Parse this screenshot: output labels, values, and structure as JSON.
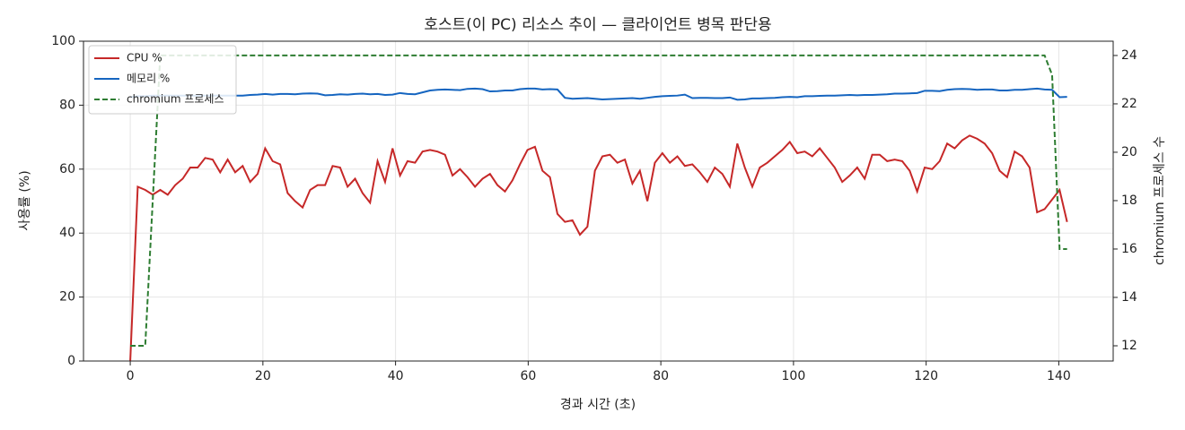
{
  "chart_data": {
    "type": "line",
    "title": "호스트(이 PC) 리소스 추이 — 클라이언트 병목 판단용",
    "x_label": "경과 시간 (초)",
    "y_label": "사용률 (%)",
    "y2_label": "chromium 프로세스 수",
    "x": [
      0,
      1.13,
      2.26,
      3.39,
      4.52,
      5.65,
      6.78,
      7.91,
      9.04,
      10.17,
      11.3,
      12.43,
      13.56,
      14.69,
      15.82,
      16.95,
      18.08,
      19.21,
      20.34,
      21.47,
      22.6,
      23.73,
      24.86,
      25.99,
      27.12,
      28.25,
      29.38,
      30.51,
      31.64,
      32.77,
      33.9,
      35.03,
      36.16,
      37.29,
      38.42,
      39.55,
      40.68,
      41.81,
      42.94,
      44.07,
      45.2,
      46.33,
      47.46,
      48.59,
      49.72,
      50.85,
      51.98,
      53.11,
      54.24,
      55.37,
      56.5,
      57.63,
      58.76,
      59.89,
      61.02,
      62.15,
      63.28,
      64.41,
      65.54,
      66.67,
      67.8,
      68.93,
      70.06,
      71.19,
      72.32,
      73.45,
      74.58,
      75.71,
      76.84,
      77.97,
      79.1,
      80.23,
      81.36,
      82.49,
      83.62,
      84.75,
      85.88,
      87.01,
      88.14,
      89.27,
      90.4,
      91.53,
      92.66,
      93.79,
      94.92,
      96.05,
      97.18,
      98.31,
      99.44,
      100.57,
      101.7,
      102.83,
      103.96,
      105.09,
      106.22,
      107.35,
      108.48,
      109.61,
      110.74,
      111.87,
      113,
      114.13,
      115.26,
      116.39,
      117.52,
      118.65,
      119.78,
      120.91,
      122.04,
      123.17,
      124.3,
      125.43,
      126.56,
      127.69,
      128.82,
      129.95,
      131.08,
      132.21,
      133.34,
      134.47,
      135.6,
      136.73,
      137.86,
      138.99,
      140.12,
      141.25
    ],
    "series": [
      {
        "name": "CPU %",
        "color": "#c62828",
        "dash": false,
        "values": [
          0,
          54.5,
          53.5,
          52,
          53.5,
          52,
          55,
          57,
          60.5,
          60.5,
          63.5,
          63,
          59,
          63,
          59,
          61,
          56,
          58.5,
          66.5,
          62.5,
          61.5,
          52.5,
          50,
          48,
          53.5,
          55,
          55,
          61,
          60.5,
          54.5,
          57,
          52.5,
          49.5,
          62.5,
          56,
          66.5,
          58,
          62.5,
          62,
          65.5,
          66,
          65.5,
          64.5,
          58,
          60,
          57.5,
          54.5,
          57,
          58.5,
          55,
          53,
          56.5,
          61.5,
          66,
          67,
          59.5,
          57.5,
          46,
          43.5,
          44,
          39.5,
          42,
          59.5,
          64,
          64.5,
          62,
          63,
          55.5,
          59.5,
          50,
          62,
          65,
          62,
          64,
          61,
          61.5,
          59,
          56,
          60.5,
          58.5,
          54.5,
          68,
          60.5,
          54.5,
          60.5,
          62,
          64,
          66,
          68.5,
          65,
          65.5,
          64,
          66.5,
          63.5,
          60.5,
          56,
          58,
          60.5,
          57,
          64.5,
          64.5,
          62.5,
          63,
          62.5,
          59.5,
          53,
          60.5,
          60,
          62.5,
          68,
          66.5,
          69,
          70.5,
          69.5,
          68,
          65,
          59.5,
          57.5,
          65.5,
          64,
          60.5,
          46.5,
          47.5,
          50.5,
          53.5,
          43.5
        ]
      },
      {
        "name": "메모리 %",
        "color": "#1565c0",
        "dash": false,
        "values": [
          82.5,
          82.8,
          82.8,
          83,
          83,
          83,
          83,
          83,
          83,
          83,
          83,
          83,
          83,
          83,
          83,
          83,
          83.2,
          83.3,
          83.5,
          83.3,
          83.5,
          83.5,
          83.4,
          83.6,
          83.7,
          83.6,
          83.1,
          83.2,
          83.4,
          83.3,
          83.5,
          83.6,
          83.4,
          83.5,
          83.2,
          83.3,
          83.8,
          83.5,
          83.4,
          84,
          84.6,
          84.8,
          84.9,
          84.8,
          84.7,
          85.1,
          85.2,
          85,
          84.3,
          84.4,
          84.6,
          84.6,
          85,
          85.2,
          85.2,
          84.9,
          85,
          84.9,
          82.3,
          82,
          82.1,
          82.2,
          82,
          81.8,
          81.9,
          82,
          82.1,
          82.2,
          82,
          82.3,
          82.6,
          82.8,
          82.9,
          83,
          83.3,
          82.2,
          82.3,
          82.3,
          82.2,
          82.2,
          82.4,
          81.7,
          81.8,
          82.1,
          82.1,
          82.2,
          82.3,
          82.5,
          82.6,
          82.5,
          82.8,
          82.8,
          82.9,
          83,
          83,
          83.1,
          83.2,
          83.1,
          83.2,
          83.2,
          83.3,
          83.4,
          83.6,
          83.6,
          83.7,
          83.8,
          84.5,
          84.5,
          84.4,
          84.8,
          85,
          85.1,
          85,
          84.8,
          84.9,
          84.9,
          84.6,
          84.6,
          84.8,
          84.8,
          85,
          85.2,
          84.9,
          84.8,
          82.5,
          82.6
        ]
      },
      {
        "name": "chromium 프로세스",
        "color": "#2e7d32",
        "dash": true,
        "axis": "y2",
        "values": [
          12,
          12,
          12,
          18,
          24,
          24,
          24,
          24,
          24,
          24,
          24,
          24,
          24,
          24,
          24,
          24,
          24,
          24,
          24,
          24,
          24,
          24,
          24,
          24,
          24,
          24,
          24,
          24,
          24,
          24,
          24,
          24,
          24,
          24,
          24,
          24,
          24,
          24,
          24,
          24,
          24,
          24,
          24,
          24,
          24,
          24,
          24,
          24,
          24,
          24,
          24,
          24,
          24,
          24,
          24,
          24,
          24,
          24,
          24,
          24,
          24,
          24,
          24,
          24,
          24,
          24,
          24,
          24,
          24,
          24,
          24,
          24,
          24,
          24,
          24,
          24,
          24,
          24,
          24,
          24,
          24,
          24,
          24,
          24,
          24,
          24,
          24,
          24,
          24,
          24,
          24,
          24,
          24,
          24,
          24,
          24,
          24,
          24,
          24,
          24,
          24,
          24,
          24,
          24,
          24,
          24,
          24,
          24,
          24,
          24,
          24,
          24,
          24,
          24,
          24,
          24,
          24,
          24,
          24,
          24,
          24,
          24,
          24,
          23.2,
          16,
          16
        ]
      }
    ],
    "xlim": [
      -7.05,
      148.2
    ],
    "xticks": [
      0,
      20,
      40,
      60,
      80,
      100,
      120,
      140
    ],
    "ylim": [
      0,
      100
    ],
    "yticks": [
      0,
      20,
      40,
      60,
      80,
      100
    ],
    "y2lim": [
      11.37,
      24.59
    ],
    "y2ticks": [
      12,
      14,
      16,
      18,
      20,
      22,
      24
    ],
    "grid": true,
    "legend": "upper-left"
  }
}
